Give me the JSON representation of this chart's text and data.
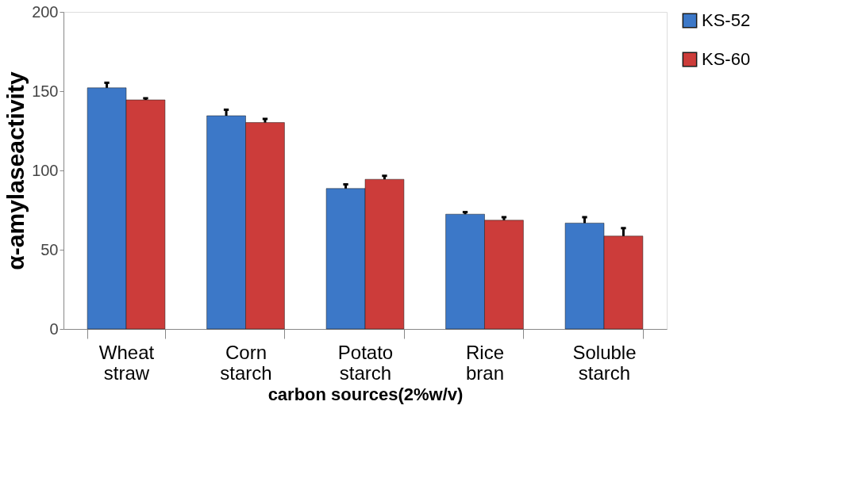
{
  "chart_data": {
    "type": "bar",
    "xlabel": "carbon sources(2%w/v)",
    "ylabel": "α-amylaseactivity",
    "categories": [
      "Wheat straw",
      "Corn starch",
      "Potato starch",
      "Rice bran",
      "Soluble starch"
    ],
    "series": [
      {
        "name": "KS-52",
        "color": "#3c78c8",
        "values": [
          152.1,
          134.5,
          88.6,
          72.4,
          66.8
        ],
        "errors": [
          [
            152.1,
            155.3
          ],
          [
            134.5,
            138.3
          ],
          [
            88.6,
            91.2
          ],
          [
            72.4,
            73.7
          ],
          [
            66.8,
            70.5
          ]
        ]
      },
      {
        "name": "KS-60",
        "color": "#cc3c3a",
        "values": [
          144.5,
          130.2,
          94.4,
          68.6,
          58.6
        ],
        "errors": [
          [
            144.5,
            145.5
          ],
          [
            130.2,
            132.5
          ],
          [
            94.4,
            96.6
          ],
          [
            68.6,
            70.5
          ],
          [
            58.6,
            63.6
          ]
        ]
      }
    ],
    "ylim": [
      0,
      200
    ],
    "yticks": [
      0,
      50,
      100,
      150,
      200
    ],
    "grid": false,
    "legend": "right"
  }
}
